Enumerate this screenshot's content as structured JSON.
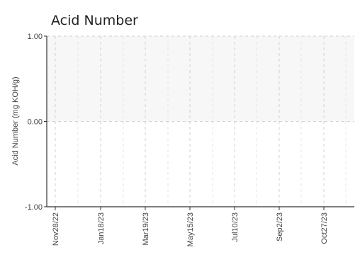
{
  "chart_data": {
    "type": "line",
    "title": "Acid Number",
    "xlabel": "",
    "ylabel": "Acid Number (mg KOH/g)",
    "ylim": [
      -1.0,
      1.0
    ],
    "y_ticks": [
      "1.00",
      "0.00",
      "-1.00"
    ],
    "x_ticks": [
      "Nov28/22",
      "Jan18/23",
      "Mar19/23",
      "May15/23",
      "Jul10/23",
      "Sep2/23",
      "Oct27/23"
    ],
    "series": [],
    "grid": true,
    "legend": "none",
    "colors": {
      "shaded_band": "#f7f7f7",
      "grid": "#d2d2d2",
      "axis": "#333333"
    }
  }
}
